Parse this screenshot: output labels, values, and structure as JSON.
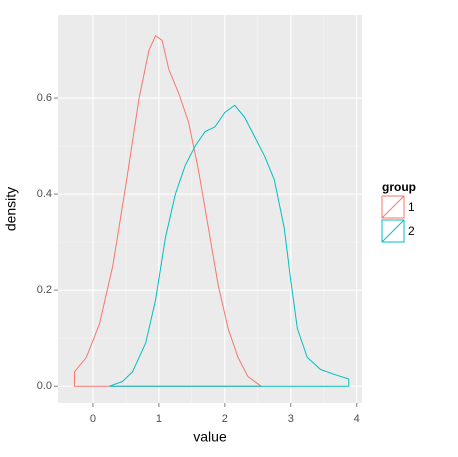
{
  "chart_data": {
    "type": "density",
    "x_label": "value",
    "y_label": "density",
    "xlim": [
      -0.53,
      4.08
    ],
    "ylim": [
      -0.035,
      0.773
    ],
    "xticks": [
      0,
      1,
      2,
      3,
      4
    ],
    "yticks": [
      {
        "value": 0,
        "label": "0.0"
      },
      0.2,
      0.4,
      0.6
    ],
    "grid": true,
    "legend_title": "group",
    "legend_position": "right",
    "series": [
      {
        "name": "1",
        "color": "#F8766D",
        "x": [
          -0.28,
          -0.1,
          0.1,
          0.3,
          0.5,
          0.7,
          0.85,
          0.95,
          1.05,
          1.15,
          1.3,
          1.45,
          1.6,
          1.75,
          1.9,
          2.05,
          2.2,
          2.35,
          2.55
        ],
        "values": [
          0.03,
          0.06,
          0.13,
          0.25,
          0.42,
          0.6,
          0.7,
          0.73,
          0.72,
          0.66,
          0.61,
          0.55,
          0.45,
          0.33,
          0.21,
          0.12,
          0.06,
          0.02,
          0.0
        ]
      },
      {
        "name": "2",
        "color": "#00BFC4",
        "x": [
          0.25,
          0.45,
          0.6,
          0.8,
          0.95,
          1.1,
          1.25,
          1.4,
          1.55,
          1.7,
          1.85,
          2.0,
          2.15,
          2.3,
          2.45,
          2.6,
          2.75,
          2.9,
          3.0,
          3.1,
          3.25,
          3.45,
          3.65,
          3.88
        ],
        "values": [
          0.0,
          0.01,
          0.03,
          0.09,
          0.18,
          0.31,
          0.4,
          0.46,
          0.5,
          0.53,
          0.54,
          0.57,
          0.585,
          0.56,
          0.52,
          0.48,
          0.43,
          0.33,
          0.22,
          0.12,
          0.06,
          0.035,
          0.025,
          0.015
        ]
      }
    ]
  }
}
